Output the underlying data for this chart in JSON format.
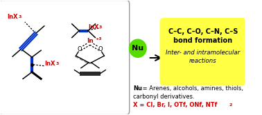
{
  "left_box_edge": "#999999",
  "yellow_box_color": "#ffff44",
  "green_circle_color": "#55dd00",
  "InX3_color": "#cc0000",
  "blue_color": "#0033cc",
  "black_color": "#000000",
  "title_line1": "C–C, C–O, C–N, C–S",
  "title_line2": "bond formation",
  "subtitle": "Inter- and intramolecular",
  "subtitle2": "reactions",
  "nu_label": "Nu",
  "body_text_bold": "Nu",
  "body_text1": " = Arenes, alcohols, amines, thiols,",
  "body_text2": "carbonyl derivatives.",
  "x_line_color": "#cc0000",
  "x_text": "X = Cl, Br, I, OTf, ONf, NTf",
  "x_subscript": "2"
}
